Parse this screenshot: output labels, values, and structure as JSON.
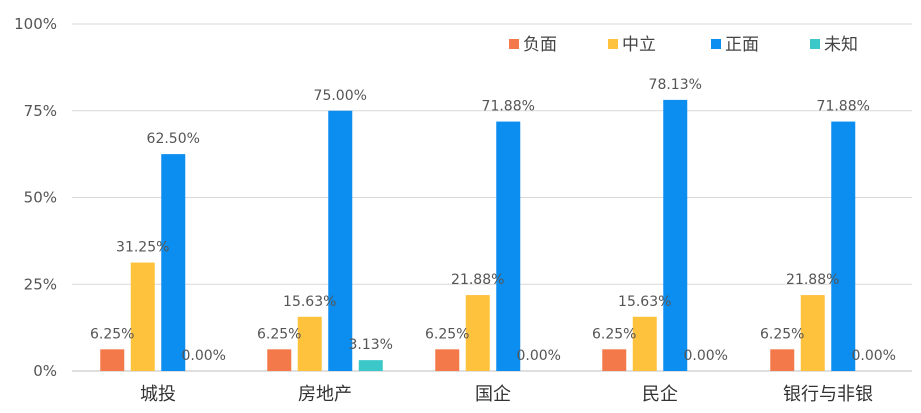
{
  "chart_data": {
    "type": "bar",
    "categories": [
      "城投",
      "房地产",
      "国企",
      "民企",
      "银行与非银"
    ],
    "series": [
      {
        "name": "负面",
        "color": "#f4794a",
        "values": [
          6.25,
          6.25,
          6.25,
          6.25,
          6.25
        ],
        "labels": [
          "6.25%",
          "6.25%",
          "6.25%",
          "6.25%",
          "6.25%"
        ]
      },
      {
        "name": "中立",
        "color": "#ffc23d",
        "values": [
          31.25,
          15.63,
          21.88,
          15.63,
          21.88
        ],
        "labels": [
          "31.25%",
          "15.63%",
          "21.88%",
          "15.63%",
          "21.88%"
        ]
      },
      {
        "name": "正面",
        "color": "#0b8ef0",
        "values": [
          62.5,
          75.0,
          71.88,
          78.13,
          71.88
        ],
        "labels": [
          "62.50%",
          "75.00%",
          "71.88%",
          "78.13%",
          "71.88%"
        ]
      },
      {
        "name": "未知",
        "color": "#3cc8c8",
        "values": [
          0.0,
          3.13,
          0.0,
          0.0,
          0.0
        ],
        "labels": [
          "0.00%",
          "3.13%",
          "0.00%",
          "0.00%",
          "0.00%"
        ]
      }
    ],
    "y_ticks": [
      "0%",
      "25%",
      "50%",
      "75%",
      "100%"
    ],
    "ylim": [
      0,
      100
    ],
    "grid": true,
    "legend_position": "top-right",
    "title": "",
    "xlabel": "",
    "ylabel": ""
  }
}
